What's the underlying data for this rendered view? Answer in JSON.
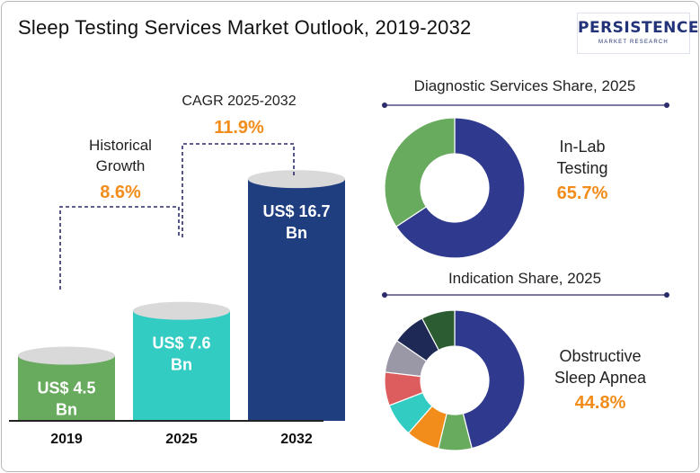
{
  "title": "Sleep Testing Services Market Outlook, 2019-2032",
  "logo": {
    "brand": "PERSISTENCE",
    "tagline": "MARKET RESEARCH"
  },
  "colors": {
    "bar_2019": "#68ab5e",
    "bar_2025": "#33ccc3",
    "bar_2032": "#1f3e80",
    "accent_orange": "#f28c1a",
    "donut_main": "#2f3a8f",
    "donut_green": "#68ab5e"
  },
  "market": {
    "historical": {
      "label": "Historical Growth",
      "value": "8.6%"
    },
    "cagr": {
      "label": "CAGR 2025-2032",
      "value": "11.9%"
    }
  },
  "chart_data": [
    {
      "type": "bar",
      "categories": [
        "2019",
        "2025",
        "2032"
      ],
      "values": [
        4.5,
        7.6,
        16.7
      ],
      "value_labels": [
        "US$ 4.5 Bn",
        "US$ 7.6 Bn",
        "US$ 16.7 Bn"
      ],
      "title": "",
      "xlabel": "",
      "ylabel": ""
    },
    {
      "type": "pie",
      "title": "Diagnostic Services Share, 2025",
      "highlight": {
        "label": "In-Lab Testing",
        "value": "65.7%"
      },
      "slices": [
        {
          "label": "In-Lab Testing",
          "value": 65.7,
          "color": "#2f3a8f"
        },
        {
          "label": "",
          "value": 34.3,
          "color": "#68ab5e"
        }
      ]
    },
    {
      "type": "pie",
      "title": "Indication Share, 2025",
      "highlight": {
        "label": "Obstructive Sleep Apnea",
        "value": "44.8%"
      },
      "slices": [
        {
          "label": "Obstructive Sleep Apnea",
          "value": 44.8,
          "color": "#2f3a8f"
        },
        {
          "label": "",
          "value": 7.5,
          "color": "#68ab5e"
        },
        {
          "label": "",
          "value": 7.5,
          "color": "#f28c1a"
        },
        {
          "label": "",
          "value": 7.5,
          "color": "#33ccc3"
        },
        {
          "label": "",
          "value": 7.5,
          "color": "#dd5c5e"
        },
        {
          "label": "",
          "value": 7.5,
          "color": "#9a97a6"
        },
        {
          "label": "",
          "value": 7.5,
          "color": "#1e2a55"
        },
        {
          "label": "",
          "value": 7.5,
          "color": "#2c5c32"
        }
      ]
    }
  ]
}
